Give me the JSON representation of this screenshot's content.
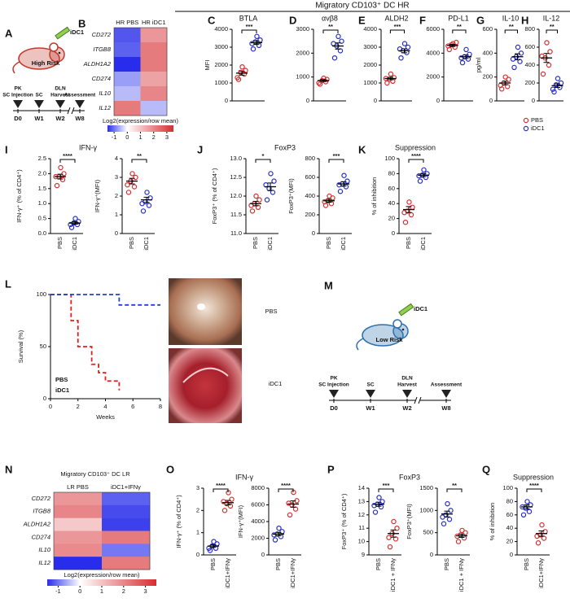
{
  "header": "Migratory CD103⁺ DC HR",
  "schematics": [
    {
      "panel": "A",
      "agent": "iDC1",
      "risk": "High Risk",
      "color": "#c0392b",
      "steps": [
        [
          "PK",
          "SC Injection"
        ],
        [
          "SC"
        ],
        [
          "DLN",
          "Harvest"
        ],
        [
          "Assessment"
        ]
      ],
      "timepoints": [
        "D0",
        "W1",
        "W2",
        "W8"
      ]
    },
    {
      "panel": "M",
      "agent": "iDC1",
      "risk": "Low Risk",
      "color": "#2c6fb0",
      "steps": [
        [
          "PK",
          "SC Injection"
        ],
        [
          "SC"
        ],
        [
          "DLN",
          "Harvest"
        ],
        [
          "Assessment"
        ]
      ],
      "timepoints": [
        "D0",
        "W1",
        "W2",
        "W8"
      ]
    }
  ],
  "chart_data": [
    {
      "type": "heatmap",
      "panel": "B",
      "columns": [
        "HR PBS",
        "HR iDC1"
      ],
      "rows": [
        "CD272",
        "ITGB8",
        "ALDH1A2",
        "CD274",
        "IL10",
        "IL12"
      ],
      "values": [
        [
          -1.1,
          1.0
        ],
        [
          -1.0,
          1.5
        ],
        [
          -1.5,
          1.5
        ],
        [
          -0.5,
          0.8
        ],
        [
          -0.3,
          1.3
        ],
        [
          1.5,
          -0.3
        ]
      ],
      "clim": [
        -1.5,
        3.5
      ],
      "cticks": [
        -1,
        0,
        1,
        2,
        3
      ],
      "colorbar_label": "Log2(expression/row mean)"
    },
    {
      "type": "dotplot",
      "panel": "C",
      "title": "BTLA",
      "ylabel": "MFI",
      "ylim": [
        0,
        4000
      ],
      "yticks": [
        0,
        1000,
        2000,
        3000,
        4000
      ],
      "significance": "***",
      "series": [
        {
          "color": "#d62f2f",
          "values": [
            1200,
            1500,
            1600,
            1700,
            1900,
            1300
          ],
          "mean": 1550,
          "sem": 110
        },
        {
          "color": "#2630c4",
          "values": [
            2900,
            3100,
            3300,
            3400,
            3600,
            3200
          ],
          "mean": 3250,
          "sem": 100
        }
      ]
    },
    {
      "type": "dotplot",
      "panel": "D",
      "title": "αvβ8",
      "ylim": [
        0,
        3000
      ],
      "yticks": [
        0,
        1000,
        2000,
        3000
      ],
      "significance": "**",
      "series": [
        {
          "color": "#d62f2f",
          "values": [
            700,
            800,
            850,
            900,
            950,
            750
          ],
          "mean": 850,
          "sem": 40
        },
        {
          "color": "#2630c4",
          "values": [
            1800,
            2100,
            2300,
            2500,
            2700,
            2400
          ],
          "mean": 2300,
          "sem": 130
        }
      ]
    },
    {
      "type": "dotplot",
      "panel": "E",
      "title": "ALDH2",
      "ylim": [
        0,
        4000
      ],
      "yticks": [
        0,
        1000,
        2000,
        3000,
        4000
      ],
      "significance": "***",
      "series": [
        {
          "color": "#d62f2f",
          "values": [
            1000,
            1100,
            1200,
            1300,
            1500,
            1250
          ],
          "mean": 1250,
          "sem": 70
        },
        {
          "color": "#2630c4",
          "values": [
            2400,
            2700,
            2800,
            3000,
            3200,
            2900
          ],
          "mean": 2800,
          "sem": 110
        }
      ]
    },
    {
      "type": "dotplot",
      "panel": "F",
      "title": "PD-L1",
      "ylim": [
        0,
        6000
      ],
      "yticks": [
        0,
        2000,
        4000,
        6000
      ],
      "significance": "**",
      "series": [
        {
          "color": "#d62f2f",
          "values": [
            4300,
            4500,
            4700,
            4900,
            4800,
            4600
          ],
          "mean": 4650,
          "sem": 90
        },
        {
          "color": "#2630c4",
          "values": [
            3200,
            3500,
            3700,
            3900,
            4300,
            3600
          ],
          "mean": 3700,
          "sem": 150
        }
      ]
    },
    {
      "type": "dotplot",
      "panel": "G",
      "title": "IL-10",
      "ylabel": "pg/ml",
      "ylim": [
        0,
        600
      ],
      "yticks": [
        0,
        200,
        400,
        600
      ],
      "significance": "**",
      "series": [
        {
          "color": "#d62f2f",
          "values": [
            100,
            120,
            150,
            180,
            200,
            130
          ],
          "mean": 150,
          "sem": 15
        },
        {
          "color": "#2630c4",
          "values": [
            280,
            330,
            370,
            400,
            450,
            350
          ],
          "mean": 370,
          "sem": 25
        }
      ]
    },
    {
      "type": "dotplot",
      "panel": "H",
      "title": "IL-12",
      "ylim": [
        0,
        800
      ],
      "yticks": [
        0,
        200,
        400,
        600,
        800
      ],
      "significance": "**",
      "legend": true,
      "series": [
        {
          "name": "PBS",
          "color": "#d62f2f",
          "values": [
            300,
            400,
            480,
            550,
            650,
            500
          ],
          "mean": 480,
          "sem": 50
        },
        {
          "name": "iDC1",
          "color": "#2630c4",
          "values": [
            100,
            150,
            180,
            200,
            250,
            130
          ],
          "mean": 170,
          "sem": 20
        }
      ]
    },
    {
      "type": "dotplot",
      "panel": "I",
      "title": "IFN-γ",
      "ylabel": "IFN-γ⁺ (% of CD4⁺)",
      "ylim": [
        0,
        2.5
      ],
      "yticks": [
        {
          "value": 0,
          "label": "0.0"
        },
        0.5,
        {
          "value": 1,
          "label": "1.0"
        },
        1.5,
        {
          "value": 2,
          "label": "2.0"
        },
        2.5
      ],
      "significance": "****",
      "series": [
        {
          "name": "PBS",
          "color": "#d62f2f",
          "values": [
            1.6,
            1.8,
            1.9,
            2.0,
            2.2,
            1.9
          ],
          "mean": 1.9,
          "sem": 0.08
        },
        {
          "name": "iDC1",
          "color": "#2630c4",
          "values": [
            0.2,
            0.3,
            0.35,
            0.4,
            0.5,
            0.3
          ],
          "mean": 0.35,
          "sem": 0.04
        }
      ]
    },
    {
      "type": "dotplot",
      "ylabel": "IFN-γ⁺(MFI)",
      "ylim": [
        0,
        4
      ],
      "yticks": [
        0,
        1,
        2,
        3,
        4
      ],
      "significance": "**",
      "series": [
        {
          "name": "PBS",
          "color": "#d62f2f",
          "values": [
            2.2,
            2.5,
            2.8,
            3.0,
            3.2,
            2.6
          ],
          "mean": 2.8,
          "sem": 0.15
        },
        {
          "name": "iDC1",
          "color": "#2630c4",
          "values": [
            1.2,
            1.5,
            1.7,
            1.9,
            2.2,
            1.6
          ],
          "mean": 1.8,
          "sem": 0.14
        }
      ]
    },
    {
      "type": "dotplot",
      "panel": "J",
      "title": "FoxP3",
      "ylabel": "FoxP3⁺ (% of CD4⁺)",
      "ylim": [
        11,
        13
      ],
      "yticks": [
        {
          "value": 11,
          "label": "11.0"
        },
        11.5,
        {
          "value": 12,
          "label": "12.0"
        },
        12.5,
        {
          "value": 13,
          "label": "13.0"
        }
      ],
      "significance": "*",
      "series": [
        {
          "name": "PBS",
          "color": "#d62f2f",
          "values": [
            11.6,
            11.7,
            11.8,
            11.9,
            12.0,
            11.75
          ],
          "mean": 11.8,
          "sem": 0.06
        },
        {
          "name": "iDC1",
          "color": "#2630c4",
          "values": [
            11.9,
            12.1,
            12.2,
            12.4,
            12.6,
            12.3
          ],
          "mean": 12.25,
          "sem": 0.1
        }
      ]
    },
    {
      "type": "dotplot",
      "ylabel": "FoxP3⁺(MFI)",
      "ylim": [
        0,
        800
      ],
      "yticks": [
        0,
        200,
        400,
        600,
        800
      ],
      "significance": "***",
      "series": [
        {
          "name": "PBS",
          "color": "#d62f2f",
          "values": [
            300,
            320,
            350,
            380,
            400,
            340
          ],
          "mean": 350,
          "sem": 15
        },
        {
          "name": "iDC1",
          "color": "#2630c4",
          "values": [
            450,
            500,
            530,
            560,
            620,
            520
          ],
          "mean": 530,
          "sem": 24
        }
      ]
    },
    {
      "type": "dotplot",
      "panel": "K",
      "title": "Suppression",
      "ylabel": "% of inhibition",
      "ylim": [
        0,
        100
      ],
      "yticks": [
        0,
        20,
        40,
        60,
        80,
        100
      ],
      "significance": "****",
      "series": [
        {
          "name": "PBS",
          "color": "#d62f2f",
          "values": [
            15,
            25,
            30,
            35,
            42,
            28
          ],
          "mean": 32,
          "sem": 4
        },
        {
          "name": "iDC1",
          "color": "#2630c4",
          "values": [
            70,
            75,
            78,
            80,
            85,
            77
          ],
          "mean": 78,
          "sem": 2
        }
      ]
    },
    {
      "type": "survival",
      "panel": "L",
      "ylabel": "Survival (%)",
      "xlabel": "Weeks",
      "xlim": [
        0,
        8
      ],
      "xticks": [
        0,
        2,
        4,
        6,
        8
      ],
      "ylim": [
        0,
        100
      ],
      "yticks": [
        0,
        50,
        100
      ],
      "series": [
        {
          "name": "PBS",
          "color": "#e02020",
          "x": [
            0,
            1.5,
            1.5,
            2,
            2,
            3,
            3,
            3.5,
            3.5,
            4,
            4,
            5,
            5
          ],
          "values": [
            100,
            100,
            75,
            75,
            50,
            50,
            33,
            33,
            25,
            25,
            17,
            17,
            8
          ]
        },
        {
          "name": "iDC1",
          "color": "#2040d0",
          "x": [
            0,
            5,
            5,
            8
          ],
          "values": [
            100,
            100,
            90,
            90
          ]
        }
      ],
      "image_labels": [
        "PBS",
        "iDC1"
      ]
    },
    {
      "type": "heatmap",
      "panel": "N",
      "title": "Migratory CD103⁺ DC LR",
      "columns": [
        "LR PBS",
        "iDC1+IFNγ"
      ],
      "rows": [
        "CD272",
        "ITGB8",
        "ALDH1A2",
        "CD274",
        "IL10",
        "IL12"
      ],
      "values": [
        [
          1.0,
          -1.0
        ],
        [
          1.3,
          -1.2
        ],
        [
          0.3,
          -1.3
        ],
        [
          1.0,
          1.5
        ],
        [
          1.2,
          -0.8
        ],
        [
          -1.5,
          1.5
        ]
      ],
      "clim": [
        -1.5,
        3.5
      ],
      "cticks": [
        -1,
        0,
        1,
        2,
        3
      ],
      "colorbar_label": "Log2(expression/row mean)"
    },
    {
      "type": "dotplot",
      "panel": "O",
      "title": "IFN-γ",
      "ylabel": "IFN-γ⁺ (% of CD4⁺)",
      "ylim": [
        0,
        3
      ],
      "yticks": [
        0,
        1,
        2,
        3
      ],
      "significance": "****",
      "series": [
        {
          "name": "PBS",
          "color": "#2630c4",
          "values": [
            0.2,
            0.3,
            0.4,
            0.5,
            0.6,
            0.3
          ],
          "mean": 0.4,
          "sem": 0.06
        },
        {
          "name": "iDC1+IFNγ",
          "color": "#d62f2f",
          "values": [
            2.0,
            2.2,
            2.3,
            2.5,
            2.8,
            2.4
          ],
          "mean": 2.35,
          "sem": 0.1
        }
      ]
    },
    {
      "type": "dotplot",
      "ylabel": "IFN-γ⁺(MFI)",
      "ylim": [
        0,
        8000
      ],
      "yticks": [
        0,
        2000,
        4000,
        6000,
        8000
      ],
      "significance": "****",
      "series": [
        {
          "name": "PBS",
          "color": "#2630c4",
          "values": [
            1800,
            2200,
            2500,
            2800,
            3200,
            2400
          ],
          "mean": 2500,
          "sem": 200
        },
        {
          "name": "iDC1+IFNγ",
          "color": "#d62f2f",
          "values": [
            4800,
            5500,
            6000,
            6500,
            7500,
            6200
          ],
          "mean": 6100,
          "sem": 380
        }
      ]
    },
    {
      "type": "dotplot",
      "panel": "P",
      "title": "FoxP3",
      "ylabel": "FoxP3⁺ (% of CD4⁺)",
      "ylim": [
        9,
        14
      ],
      "yticks": [
        9,
        10,
        11,
        12,
        13,
        14
      ],
      "significance": "***",
      "series": [
        {
          "name": "PBS",
          "color": "#2630c4",
          "values": [
            12.2,
            12.6,
            12.8,
            13.0,
            13.3,
            12.7
          ],
          "mean": 12.8,
          "sem": 0.15
        },
        {
          "name": "iDC1 + IFNγ",
          "color": "#d62f2f",
          "values": [
            9.6,
            10.2,
            10.6,
            11.0,
            11.5,
            10.3
          ],
          "mean": 10.6,
          "sem": 0.27
        }
      ]
    },
    {
      "type": "dotplot",
      "ylabel": "FoxP3⁺(MFI)",
      "ylim": [
        0,
        1500
      ],
      "yticks": [
        0,
        500,
        1000,
        1500
      ],
      "significance": "**",
      "series": [
        {
          "name": "PBS",
          "color": "#2630c4",
          "values": [
            700,
            800,
            900,
            1000,
            1150,
            850
          ],
          "mean": 920,
          "sem": 65
        },
        {
          "name": "iDC1 + IFNγ",
          "color": "#d62f2f",
          "values": [
            300,
            380,
            450,
            500,
            550,
            420
          ],
          "mean": 430,
          "sem": 36
        }
      ]
    },
    {
      "type": "dotplot",
      "panel": "Q",
      "title": "Suppression",
      "ylabel": "% of inhibition",
      "ylim": [
        0,
        100
      ],
      "yticks": [
        0,
        20,
        40,
        60,
        80,
        100
      ],
      "significance": "****",
      "series": [
        {
          "name": "PBS",
          "color": "#2630c4",
          "values": [
            60,
            65,
            70,
            75,
            80,
            72
          ],
          "mean": 72,
          "sem": 3
        },
        {
          "name": "iDC1+IFNγ",
          "color": "#d62f2f",
          "values": [
            18,
            25,
            30,
            35,
            45,
            28
          ],
          "mean": 32,
          "sem": 4
        }
      ]
    }
  ]
}
